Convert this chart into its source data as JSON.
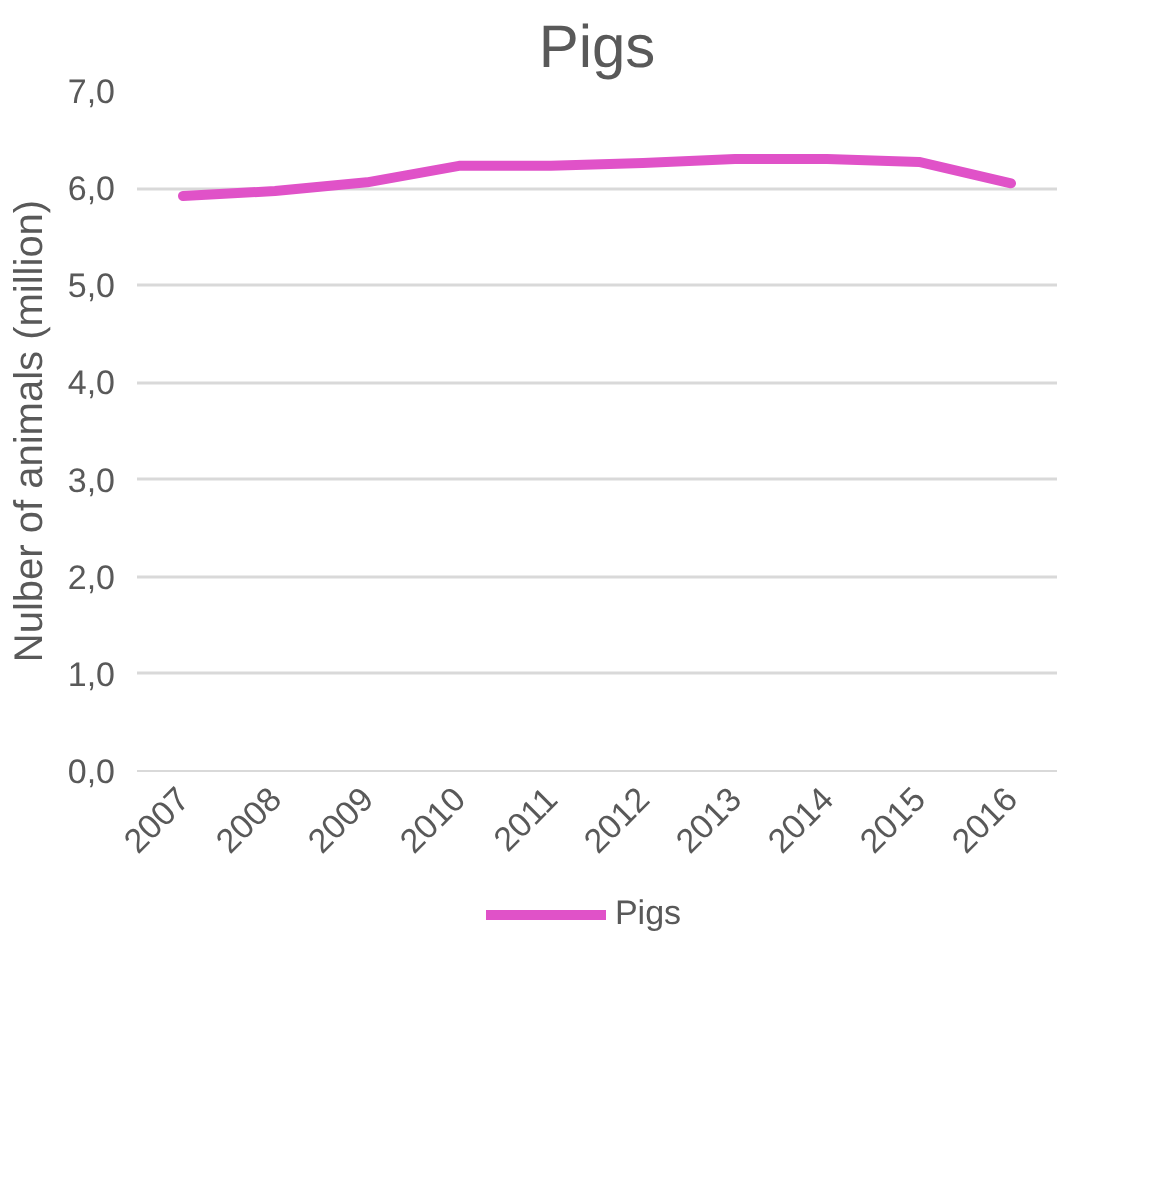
{
  "chart_data": {
    "type": "line",
    "title": "Pigs",
    "ylabel": "Nulber of animals (million)",
    "categories": [
      "2007",
      "2008",
      "2009",
      "2010",
      "2011",
      "2012",
      "2013",
      "2014",
      "2015",
      "2016"
    ],
    "series": [
      {
        "name": "Pigs",
        "color": "#e052c8",
        "values": [
          5.92,
          5.97,
          6.06,
          6.23,
          6.23,
          6.26,
          6.3,
          6.3,
          6.27,
          6.05
        ]
      }
    ],
    "ylim": [
      0,
      7
    ],
    "yticks": [
      {
        "value": 0,
        "label": "0,0"
      },
      {
        "value": 1,
        "label": "1,0"
      },
      {
        "value": 2,
        "label": "2,0"
      },
      {
        "value": 3,
        "label": "3,0"
      },
      {
        "value": 4,
        "label": "4,0"
      },
      {
        "value": 5,
        "label": "5,0"
      },
      {
        "value": 6,
        "label": "6,0"
      },
      {
        "value": 7,
        "label": "7,0"
      }
    ],
    "grid": "y",
    "legend": "bottom",
    "marker": "none",
    "line_style": "solid"
  }
}
